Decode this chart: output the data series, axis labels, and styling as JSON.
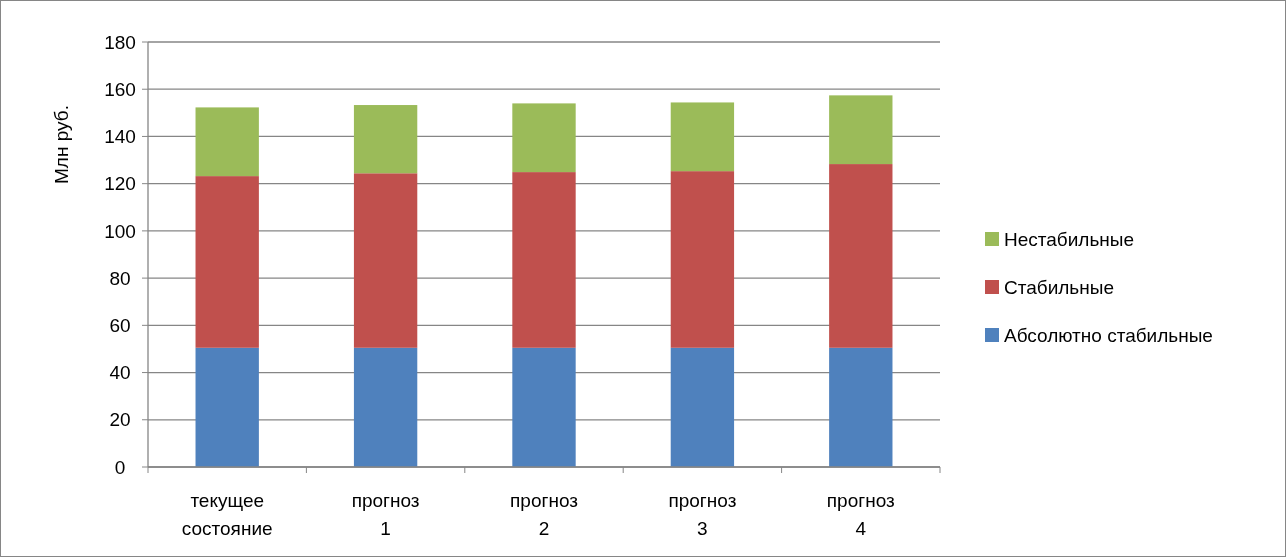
{
  "chart_data": {
    "type": "bar",
    "stacked": true,
    "ylabel": "Млн руб.",
    "categories": [
      "текущее состояние",
      "прогноз 1",
      "прогноз 2",
      "прогноз 3",
      "прогноз 4"
    ],
    "series": [
      {
        "name": "Абсолютно стабильные",
        "color": "#4f81bd",
        "values": [
          50.5,
          50.5,
          50.5,
          50.5,
          50.5
        ]
      },
      {
        "name": "Стабильные",
        "color": "#c0504d",
        "values": [
          72.7,
          73.9,
          74.4,
          74.8,
          77.8
        ]
      },
      {
        "name": "Нестабильные",
        "color": "#9bbb59",
        "values": [
          29.1,
          28.9,
          29.1,
          29.1,
          29.1
        ]
      }
    ],
    "ylim": [
      0,
      180
    ],
    "yticks": [
      0,
      20,
      40,
      60,
      80,
      100,
      120,
      140,
      160,
      180
    ],
    "grid": "y",
    "legend": "right"
  }
}
